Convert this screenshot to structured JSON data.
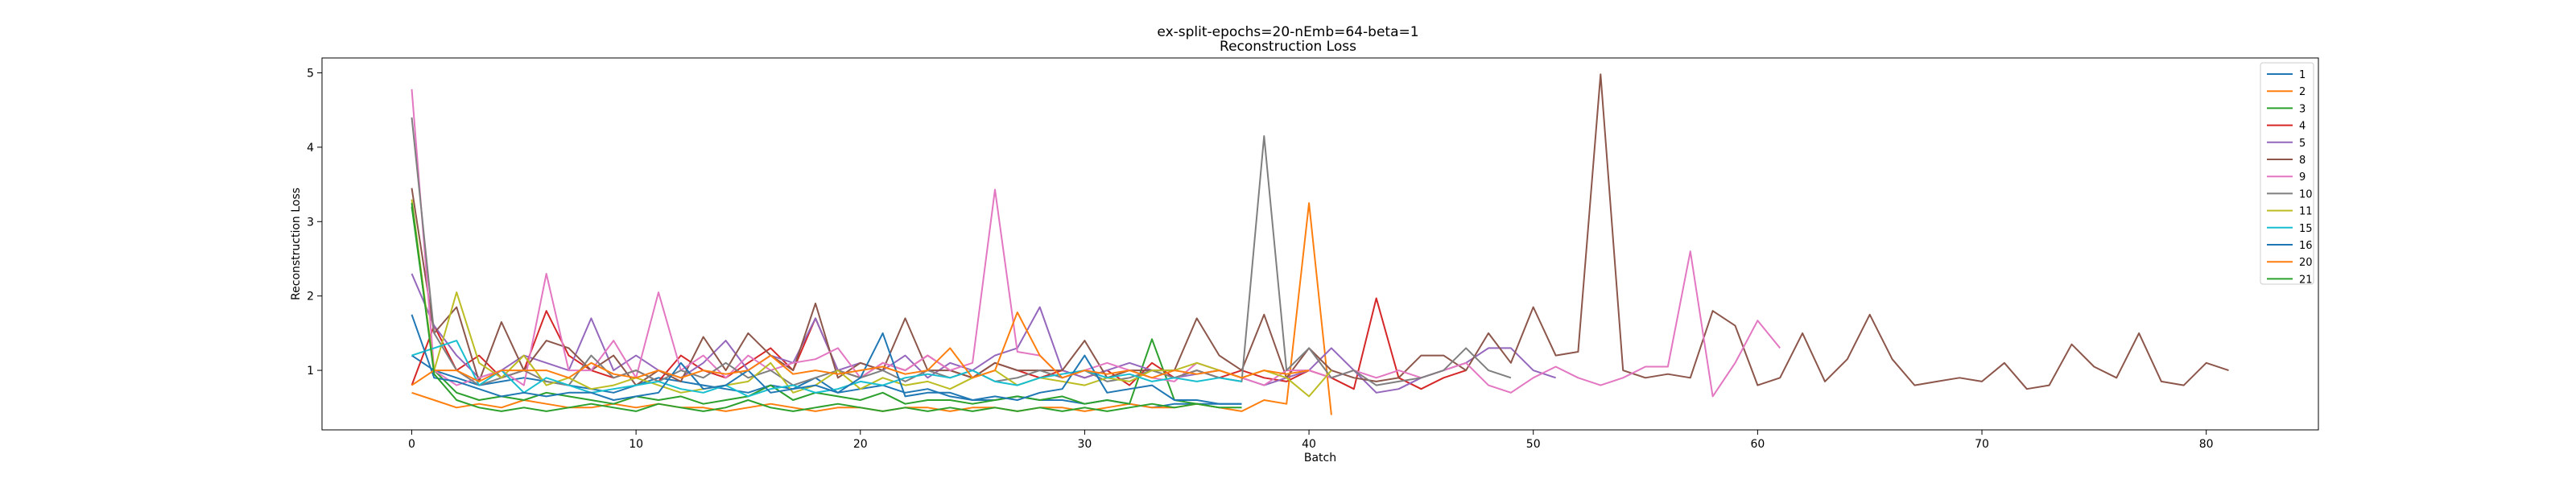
{
  "chart_data": {
    "type": "line",
    "title": "ex-split-epochs=20-nEmb=64-beta=1",
    "subtitle": "Reconstruction Loss",
    "xlabel": "Batch",
    "ylabel": "Reconstruction Loss",
    "xlim": [
      -4,
      85
    ],
    "ylim": [
      0.2,
      5.2
    ],
    "xticks": [
      0,
      10,
      20,
      30,
      40,
      50,
      60,
      70,
      80
    ],
    "yticks": [
      1,
      2,
      3,
      4,
      5
    ],
    "grid": false,
    "legend_position": "top-right",
    "series": [
      {
        "name": "1",
        "color": "#1f77b4",
        "values": [
          1.2,
          1.0,
          0.9,
          0.8,
          0.85,
          0.9,
          0.85,
          0.8,
          0.75,
          0.7,
          0.8,
          0.9,
          0.85,
          0.8,
          0.75,
          0.7,
          0.8,
          0.75,
          0.9,
          0.7,
          0.75,
          0.8,
          0.7,
          0.75,
          0.65,
          0.6,
          0.6,
          0.65,
          0.6,
          0.6,
          0.55,
          0.6,
          0.55,
          0.5,
          0.55,
          0.55,
          0.55,
          0.55
        ]
      },
      {
        "name": "2",
        "color": "#ff7f0e",
        "values": [
          0.7,
          0.6,
          0.5,
          0.55,
          0.5,
          0.6,
          0.55,
          0.5,
          0.5,
          0.55,
          0.5,
          0.55,
          0.5,
          0.5,
          0.45,
          0.5,
          0.55,
          0.5,
          0.45,
          0.5,
          0.5,
          0.45,
          0.5,
          0.5,
          0.45,
          0.5,
          0.5,
          0.45,
          0.5,
          0.5,
          0.45,
          0.5,
          0.55,
          0.5,
          0.5,
          0.55,
          0.5,
          0.45,
          0.6,
          0.55,
          3.25,
          0.4
        ]
      },
      {
        "name": "3",
        "color": "#2ca02c",
        "values": [
          3.2,
          1.0,
          0.7,
          0.6,
          0.65,
          0.6,
          0.7,
          0.65,
          0.6,
          0.55,
          0.65,
          0.6,
          0.65,
          0.55,
          0.6,
          0.65,
          0.8,
          0.6,
          0.7,
          0.65,
          0.6,
          0.7,
          0.55,
          0.6,
          0.6,
          0.55,
          0.6,
          0.65,
          0.6,
          0.65,
          0.55,
          0.6,
          0.55,
          1.42,
          0.6,
          0.55,
          0.5
        ]
      },
      {
        "name": "4",
        "color": "#d62728",
        "values": [
          0.8,
          1.6,
          1.0,
          1.2,
          0.9,
          1.0,
          1.8,
          1.2,
          1.0,
          0.9,
          1.0,
          0.85,
          1.2,
          1.0,
          0.9,
          1.1,
          1.3,
          1.0,
          1.7,
          1.0,
          0.9,
          1.1,
          1.0,
          1.2,
          1.0,
          0.9,
          1.1,
          1.0,
          0.9,
          1.0,
          0.9,
          1.0,
          0.8,
          1.1,
          0.9,
          1.0,
          0.9,
          1.0,
          0.9,
          0.85,
          1.0,
          0.9,
          0.75,
          1.97,
          0.9,
          0.75,
          0.9,
          1.0
        ]
      },
      {
        "name": "5",
        "color": "#9467bd",
        "values": [
          2.3,
          1.6,
          1.2,
          0.9,
          1.0,
          1.2,
          1.1,
          1.0,
          1.7,
          1.0,
          1.2,
          1.0,
          0.9,
          1.1,
          1.4,
          1.0,
          1.2,
          1.1,
          1.7,
          1.0,
          1.1,
          1.0,
          1.2,
          0.9,
          1.1,
          1.0,
          1.2,
          1.3,
          1.85,
          1.0,
          0.9,
          1.0,
          1.1,
          1.0,
          0.9,
          0.95,
          1.0,
          0.9,
          0.8,
          0.9,
          1.0,
          1.3,
          1.0,
          0.7,
          0.75,
          0.9,
          1.0,
          1.1,
          1.3,
          1.3,
          1.0,
          0.9
        ]
      },
      {
        "name": "8",
        "color": "#8c564b",
        "values": [
          3.45,
          1.5,
          1.85,
          0.85,
          1.65,
          1.0,
          1.4,
          1.3,
          1.0,
          1.2,
          0.8,
          1.0,
          0.85,
          1.45,
          1.0,
          1.5,
          1.2,
          1.0,
          1.9,
          0.9,
          1.1,
          1.0,
          1.7,
          1.0,
          1.0,
          0.9,
          1.1,
          1.0,
          1.0,
          1.0,
          1.4,
          0.9,
          1.0,
          1.0,
          1.0,
          1.7,
          1.2,
          1.0,
          1.75,
          0.9,
          1.3,
          1.0,
          0.9,
          0.85,
          0.9,
          1.2,
          1.2,
          1.0,
          1.5,
          1.1,
          1.85,
          1.2,
          1.25,
          4.98,
          1.0,
          0.9,
          0.95,
          0.9,
          1.8,
          1.6,
          0.8,
          0.9,
          1.5,
          0.85,
          1.15,
          1.75,
          1.15,
          0.8,
          0.85,
          0.9,
          0.85,
          1.1,
          0.75,
          0.8,
          1.35,
          1.05,
          0.9,
          1.5,
          0.85,
          0.8,
          1.1,
          1.0
        ]
      },
      {
        "name": "9",
        "color": "#e377c2",
        "values": [
          4.78,
          1.0,
          0.8,
          0.9,
          1.0,
          0.8,
          2.3,
          1.0,
          1.0,
          1.4,
          0.9,
          2.05,
          1.0,
          1.2,
          0.9,
          1.2,
          1.0,
          1.1,
          1.15,
          1.3,
          0.9,
          1.1,
          1.0,
          1.2,
          1.0,
          1.1,
          3.43,
          1.25,
          1.2,
          0.9,
          1.0,
          1.1,
          1.0,
          0.9,
          0.85,
          1.1,
          1.0,
          0.9,
          0.8,
          1.0,
          1.0,
          0.9,
          1.0,
          0.9,
          1.0,
          0.9,
          1.0,
          1.1,
          0.8,
          0.7,
          0.9,
          1.05,
          0.9,
          0.8,
          0.9,
          1.05,
          1.05,
          2.6,
          0.65,
          1.1,
          1.67,
          1.3
        ]
      },
      {
        "name": "10",
        "color": "#7f7f7f",
        "values": [
          4.4,
          1.5,
          1.0,
          0.8,
          0.9,
          1.0,
          0.85,
          0.8,
          1.2,
          0.9,
          1.0,
          0.85,
          1.0,
          0.9,
          1.1,
          0.9,
          1.0,
          0.8,
          0.9,
          1.0,
          0.9,
          1.0,
          0.85,
          1.0,
          0.9,
          1.0,
          0.85,
          0.9,
          1.0,
          0.9,
          1.0,
          0.85,
          0.9,
          1.0,
          0.9,
          1.0,
          0.9,
          0.85,
          4.15,
          1.0,
          1.3,
          0.9,
          1.0,
          0.8,
          0.85,
          0.9,
          1.0,
          1.3,
          1.0,
          0.9
        ]
      },
      {
        "name": "11",
        "color": "#bcbd22",
        "values": [
          3.3,
          1.0,
          2.05,
          1.1,
          0.9,
          1.2,
          0.8,
          0.9,
          0.75,
          0.8,
          0.9,
          0.8,
          0.7,
          0.75,
          0.8,
          0.85,
          1.1,
          0.7,
          0.8,
          1.0,
          0.75,
          0.9,
          0.8,
          0.85,
          0.75,
          0.9,
          1.0,
          0.8,
          0.9,
          0.85,
          0.8,
          0.9,
          0.85,
          1.0,
          1.0,
          1.1,
          1.0,
          0.9,
          1.0,
          0.9,
          0.65,
          1.0
        ]
      },
      {
        "name": "15",
        "color": "#17becf",
        "values": [
          1.2,
          1.3,
          1.4,
          0.8,
          1.0,
          0.7,
          0.9,
          0.8,
          0.7,
          0.75,
          0.8,
          0.85,
          0.75,
          0.7,
          0.8,
          0.65,
          0.75,
          0.8,
          0.7,
          0.75,
          0.85,
          0.8,
          0.9,
          0.95,
          0.9,
          1.0,
          0.85,
          0.8,
          0.9,
          0.95,
          1.0,
          0.9,
          0.95,
          0.85,
          0.9,
          0.85,
          0.9,
          0.85
        ]
      },
      {
        "name": "16",
        "color": "#1f77b4",
        "values": [
          1.75,
          0.9,
          0.85,
          0.75,
          0.65,
          0.7,
          0.65,
          0.7,
          0.7,
          0.6,
          0.65,
          0.7,
          1.1,
          0.75,
          0.8,
          1.0,
          0.7,
          0.75,
          0.8,
          0.7,
          0.9,
          1.5,
          0.65,
          0.7,
          0.7,
          0.6,
          0.65,
          0.6,
          0.7,
          0.75,
          1.2,
          0.7,
          0.75,
          0.8,
          0.6,
          0.6,
          0.55,
          0.55
        ]
      },
      {
        "name": "20",
        "color": "#ff7f0e",
        "values": [
          0.8,
          1.0,
          1.0,
          0.85,
          1.0,
          1.0,
          1.0,
          0.9,
          1.1,
          0.95,
          0.9,
          1.0,
          0.9,
          1.0,
          0.95,
          1.0,
          1.2,
          0.95,
          1.0,
          0.95,
          1.0,
          1.05,
          0.95,
          1.0,
          1.3,
          0.9,
          1.0,
          1.78,
          1.2,
          0.9,
          1.0,
          0.95,
          1.0,
          0.9,
          1.0,
          0.95,
          1.0,
          0.9,
          1.0,
          0.95,
          1.0
        ]
      },
      {
        "name": "21",
        "color": "#2ca02c",
        "values": [
          3.25,
          0.95,
          0.6,
          0.5,
          0.45,
          0.5,
          0.45,
          0.5,
          0.55,
          0.5,
          0.45,
          0.55,
          0.5,
          0.45,
          0.5,
          0.6,
          0.5,
          0.45,
          0.5,
          0.55,
          0.5,
          0.45,
          0.5,
          0.45,
          0.5,
          0.45,
          0.5,
          0.45,
          0.5,
          0.45,
          0.5,
          0.45,
          0.5,
          0.55,
          0.5,
          0.55,
          0.5,
          0.5
        ]
      }
    ]
  }
}
